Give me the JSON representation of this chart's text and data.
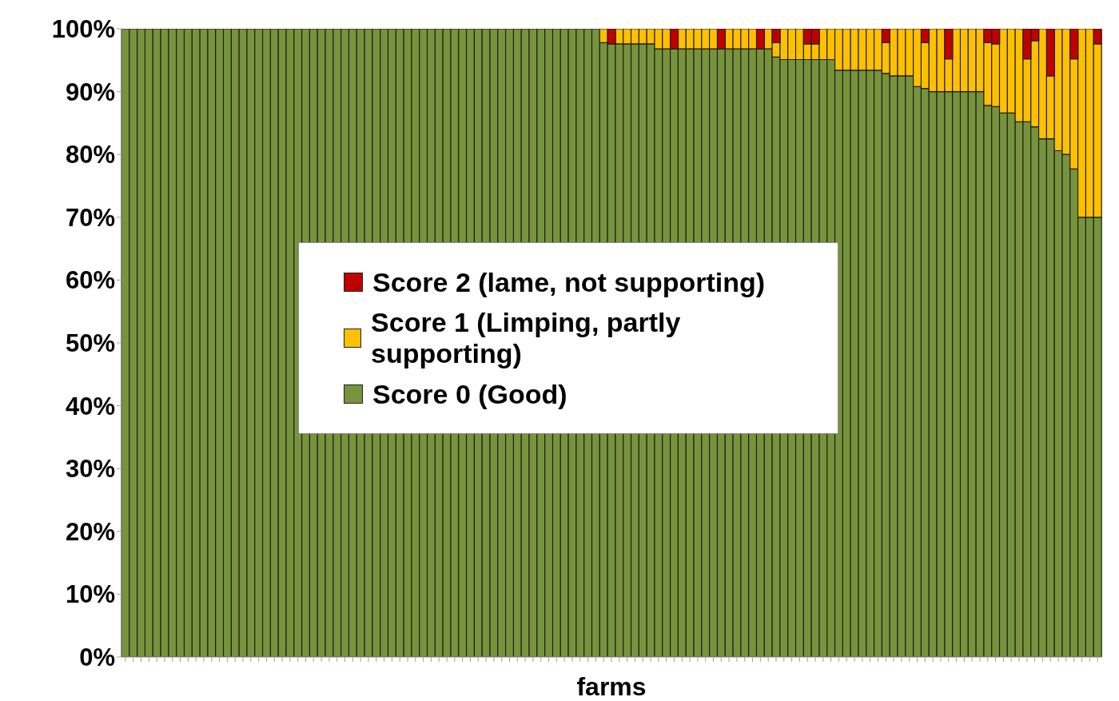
{
  "chart_data": {
    "type": "bar",
    "stacked": true,
    "xlabel": "farms",
    "categories": [
      null,
      null,
      null,
      null,
      null,
      null,
      null,
      null,
      null,
      null,
      null,
      null,
      null,
      null,
      null,
      null,
      null,
      null,
      null,
      null,
      null,
      null,
      null,
      null,
      null,
      null,
      null,
      null,
      null,
      null,
      null,
      null,
      null,
      null,
      null,
      null,
      null,
      null,
      null,
      null,
      null,
      null,
      null,
      null,
      null,
      null,
      null,
      null,
      null,
      null,
      null,
      null,
      null,
      null,
      null,
      null,
      null,
      null,
      null,
      null,
      null,
      null,
      null,
      null,
      null,
      null,
      null,
      null,
      null,
      null,
      null,
      null,
      null,
      null,
      null,
      null,
      null,
      null,
      null,
      null,
      null,
      null,
      null,
      null,
      null,
      null,
      null,
      null,
      null,
      null,
      null,
      null,
      null,
      null,
      null,
      null,
      null,
      null,
      null,
      null,
      null,
      null,
      null,
      null,
      null,
      null,
      null,
      null,
      null,
      null,
      null,
      null,
      null,
      null,
      null,
      null,
      null,
      null,
      null,
      null,
      null,
      null,
      null,
      null,
      null
    ],
    "series": [
      {
        "name": "Score 0 (Good)",
        "color": "#77933c",
        "values": [
          100,
          100,
          100,
          100,
          100,
          100,
          100,
          100,
          100,
          100,
          100,
          100,
          100,
          100,
          100,
          100,
          100,
          100,
          100,
          100,
          100,
          100,
          100,
          100,
          100,
          100,
          100,
          100,
          100,
          100,
          100,
          100,
          100,
          100,
          100,
          100,
          100,
          100,
          100,
          100,
          100,
          100,
          100,
          100,
          100,
          100,
          100,
          100,
          100,
          100,
          100,
          100,
          100,
          100,
          100,
          100,
          100,
          100,
          100,
          100,
          100,
          97.8,
          97.6,
          97.6,
          97.6,
          97.6,
          97.6,
          97.6,
          96.8,
          96.8,
          96.8,
          96.8,
          96.8,
          96.8,
          96.8,
          96.8,
          96.8,
          96.8,
          96.8,
          96.8,
          96.8,
          96.8,
          96.8,
          95.5,
          95.1,
          95.1,
          95.1,
          95.1,
          95.1,
          95.1,
          95.1,
          93.4,
          93.4,
          93.4,
          93.4,
          93.4,
          93.4,
          92.9,
          92.5,
          92.5,
          92.5,
          90.8,
          90.5,
          90,
          90,
          90,
          90,
          90,
          90,
          90,
          87.8,
          87.6,
          86.6,
          86.6,
          85.2,
          85.2,
          84.4,
          82.5,
          82.5,
          80.6,
          80,
          77.7,
          70,
          70,
          70
        ]
      },
      {
        "name": "Score 1 (Limping, partly supporting)",
        "color": "#ffc000",
        "values": [
          0,
          0,
          0,
          0,
          0,
          0,
          0,
          0,
          0,
          0,
          0,
          0,
          0,
          0,
          0,
          0,
          0,
          0,
          0,
          0,
          0,
          0,
          0,
          0,
          0,
          0,
          0,
          0,
          0,
          0,
          0,
          0,
          0,
          0,
          0,
          0,
          0,
          0,
          0,
          0,
          0,
          0,
          0,
          0,
          0,
          0,
          0,
          0,
          0,
          0,
          0,
          0,
          0,
          0,
          0,
          0,
          0,
          0,
          0,
          0,
          0,
          2.2,
          0,
          2.4,
          2.4,
          2.4,
          2.4,
          2.4,
          3.2,
          3.2,
          0,
          3.2,
          3.2,
          3.2,
          3.2,
          3.2,
          0,
          3.2,
          3.2,
          3.2,
          3.2,
          0,
          3.2,
          2.3,
          4.9,
          4.9,
          4.9,
          2.5,
          2.5,
          4.9,
          4.9,
          6.6,
          6.6,
          6.6,
          6.6,
          6.6,
          6.6,
          4.9,
          7.5,
          7.5,
          7.5,
          9.2,
          7.3,
          10,
          10,
          5.2,
          10,
          10,
          10,
          10,
          10,
          10,
          13.4,
          13.4,
          14.8,
          10,
          13.7,
          17.5,
          10,
          19.4,
          20,
          17.5,
          30,
          30,
          27.6
        ]
      },
      {
        "name": "Score 2 (lame, not supporting)",
        "color": "#c00000",
        "values": [
          0,
          0,
          0,
          0,
          0,
          0,
          0,
          0,
          0,
          0,
          0,
          0,
          0,
          0,
          0,
          0,
          0,
          0,
          0,
          0,
          0,
          0,
          0,
          0,
          0,
          0,
          0,
          0,
          0,
          0,
          0,
          0,
          0,
          0,
          0,
          0,
          0,
          0,
          0,
          0,
          0,
          0,
          0,
          0,
          0,
          0,
          0,
          0,
          0,
          0,
          0,
          0,
          0,
          0,
          0,
          0,
          0,
          0,
          0,
          0,
          0,
          0,
          2.4,
          0,
          0,
          0,
          0,
          0,
          0,
          0,
          3.2,
          0,
          0,
          0,
          0,
          0,
          3.2,
          0,
          0,
          0,
          0,
          3.2,
          0,
          2.2,
          0,
          0,
          0,
          2.4,
          2.4,
          0,
          0,
          0,
          0,
          0,
          0,
          0,
          0,
          2.2,
          0,
          0,
          0,
          0,
          2.2,
          0,
          0,
          4.8,
          0,
          0,
          0,
          0,
          2.2,
          2.4,
          0,
          0,
          0,
          4.8,
          1.9,
          0,
          7.5,
          0,
          0,
          4.8,
          0,
          0,
          2.4
        ]
      }
    ],
    "ylim": [
      0,
      100
    ],
    "yticks": [
      {
        "value": 0,
        "label": "0%"
      },
      {
        "value": 10,
        "label": "10%"
      },
      {
        "value": 20,
        "label": "20%"
      },
      {
        "value": 30,
        "label": "30%"
      },
      {
        "value": 40,
        "label": "40%"
      },
      {
        "value": 50,
        "label": "50%"
      },
      {
        "value": 60,
        "label": "60%"
      },
      {
        "value": 70,
        "label": "70%"
      },
      {
        "value": 80,
        "label": "80%"
      },
      {
        "value": 90,
        "label": "90%"
      },
      {
        "value": 100,
        "label": "100%"
      }
    ],
    "grid": false,
    "legend": "center",
    "tick_labels": "y"
  }
}
